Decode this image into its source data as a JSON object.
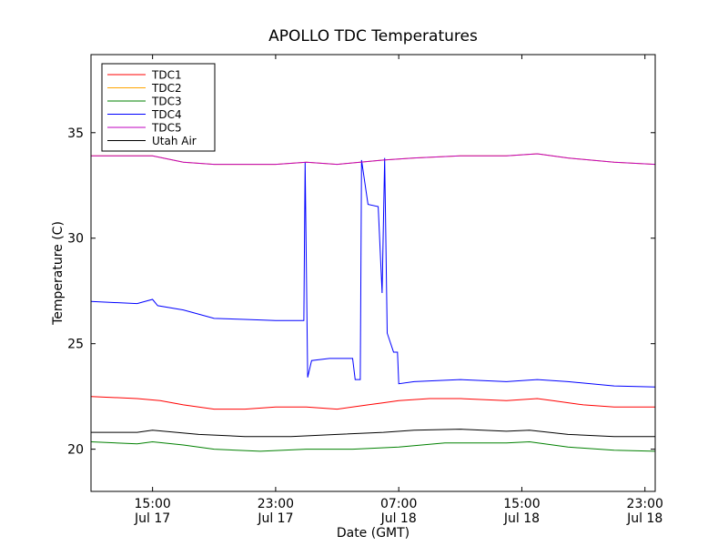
{
  "chart_data": {
    "type": "line",
    "title": "APOLLO TDC Temperatures",
    "xlabel": "Date (GMT)",
    "ylabel": "Temperature (C)",
    "xlim": [
      "2012-07-17T11:00",
      "2012-07-18T23:40"
    ],
    "ylim": [
      18,
      38.7
    ],
    "grid": false,
    "legend_position": "top-left",
    "x_ticks": [
      {
        "x": "2012-07-17T15:00",
        "time": "15:00",
        "date": "Jul 17"
      },
      {
        "x": "2012-07-17T23:00",
        "time": "23:00",
        "date": "Jul 17"
      },
      {
        "x": "2012-07-18T07:00",
        "time": "07:00",
        "date": "Jul 18"
      },
      {
        "x": "2012-07-18T15:00",
        "time": "15:00",
        "date": "Jul 18"
      },
      {
        "x": "2012-07-18T23:00",
        "time": "23:00",
        "date": "Jul 18"
      }
    ],
    "y_ticks": [
      20,
      25,
      30,
      35
    ],
    "series": [
      {
        "name": "TDC1",
        "color": "#ff0000",
        "points": [
          [
            "2012-07-17T11:00",
            22.5
          ],
          [
            "2012-07-17T14:00",
            22.4
          ],
          [
            "2012-07-17T15:30",
            22.3
          ],
          [
            "2012-07-17T17:00",
            22.1
          ],
          [
            "2012-07-17T19:00",
            21.9
          ],
          [
            "2012-07-17T21:00",
            21.9
          ],
          [
            "2012-07-17T23:00",
            22.0
          ],
          [
            "2012-07-18T01:00",
            22.0
          ],
          [
            "2012-07-18T03:00",
            21.9
          ],
          [
            "2012-07-18T05:00",
            22.1
          ],
          [
            "2012-07-18T06:00",
            22.2
          ],
          [
            "2012-07-18T07:00",
            22.3
          ],
          [
            "2012-07-18T09:00",
            22.4
          ],
          [
            "2012-07-18T11:00",
            22.4
          ],
          [
            "2012-07-18T14:00",
            22.3
          ],
          [
            "2012-07-18T16:00",
            22.4
          ],
          [
            "2012-07-18T17:00",
            22.3
          ],
          [
            "2012-07-18T19:00",
            22.1
          ],
          [
            "2012-07-18T21:00",
            22.0
          ],
          [
            "2012-07-18T23:40",
            22.0
          ]
        ]
      },
      {
        "name": "TDC2",
        "color": "#ffa500",
        "points": [
          [
            "2012-07-17T11:00",
            33.9
          ],
          [
            "2012-07-17T14:00",
            33.9
          ],
          [
            "2012-07-17T15:00",
            33.9
          ],
          [
            "2012-07-17T17:00",
            33.6
          ],
          [
            "2012-07-17T19:00",
            33.5
          ],
          [
            "2012-07-17T23:00",
            33.5
          ],
          [
            "2012-07-18T01:00",
            33.6
          ],
          [
            "2012-07-18T03:00",
            33.5
          ],
          [
            "2012-07-18T06:00",
            33.7
          ],
          [
            "2012-07-18T08:00",
            33.8
          ],
          [
            "2012-07-18T11:00",
            33.9
          ],
          [
            "2012-07-18T14:00",
            33.9
          ],
          [
            "2012-07-18T16:00",
            34.0
          ],
          [
            "2012-07-18T18:00",
            33.8
          ],
          [
            "2012-07-18T21:00",
            33.6
          ],
          [
            "2012-07-18T23:40",
            33.5
          ]
        ]
      },
      {
        "name": "TDC3",
        "color": "#008000",
        "points": [
          [
            "2012-07-17T11:00",
            20.35
          ],
          [
            "2012-07-17T14:00",
            20.25
          ],
          [
            "2012-07-17T15:00",
            20.35
          ],
          [
            "2012-07-17T17:00",
            20.2
          ],
          [
            "2012-07-17T19:00",
            20.0
          ],
          [
            "2012-07-17T22:00",
            19.9
          ],
          [
            "2012-07-18T01:00",
            20.0
          ],
          [
            "2012-07-18T04:00",
            20.0
          ],
          [
            "2012-07-18T07:00",
            20.1
          ],
          [
            "2012-07-18T10:00",
            20.3
          ],
          [
            "2012-07-18T14:00",
            20.3
          ],
          [
            "2012-07-18T15:30",
            20.35
          ],
          [
            "2012-07-18T18:00",
            20.1
          ],
          [
            "2012-07-18T21:00",
            19.95
          ],
          [
            "2012-07-18T23:40",
            19.9
          ]
        ]
      },
      {
        "name": "TDC4",
        "color": "#0000ff",
        "points": [
          [
            "2012-07-17T11:00",
            27.0
          ],
          [
            "2012-07-17T14:00",
            26.9
          ],
          [
            "2012-07-17T15:00",
            27.1
          ],
          [
            "2012-07-17T15:20",
            26.8
          ],
          [
            "2012-07-17T17:00",
            26.6
          ],
          [
            "2012-07-17T19:00",
            26.2
          ],
          [
            "2012-07-17T21:00",
            26.15
          ],
          [
            "2012-07-17T23:00",
            26.1
          ],
          [
            "2012-07-18T00:50",
            26.1
          ],
          [
            "2012-07-18T00:55",
            33.6
          ],
          [
            "2012-07-18T01:05",
            23.4
          ],
          [
            "2012-07-18T01:20",
            24.2
          ],
          [
            "2012-07-18T02:30",
            24.3
          ],
          [
            "2012-07-18T04:00",
            24.3
          ],
          [
            "2012-07-18T04:10",
            23.3
          ],
          [
            "2012-07-18T04:30",
            23.3
          ],
          [
            "2012-07-18T04:35",
            33.7
          ],
          [
            "2012-07-18T05:00",
            31.6
          ],
          [
            "2012-07-18T05:40",
            31.5
          ],
          [
            "2012-07-18T05:55",
            27.4
          ],
          [
            "2012-07-18T06:05",
            33.8
          ],
          [
            "2012-07-18T06:15",
            25.5
          ],
          [
            "2012-07-18T06:40",
            24.6
          ],
          [
            "2012-07-18T06:55",
            24.6
          ],
          [
            "2012-07-18T07:00",
            23.1
          ],
          [
            "2012-07-18T08:00",
            23.2
          ],
          [
            "2012-07-18T11:00",
            23.3
          ],
          [
            "2012-07-18T14:00",
            23.2
          ],
          [
            "2012-07-18T16:00",
            23.3
          ],
          [
            "2012-07-18T18:00",
            23.2
          ],
          [
            "2012-07-18T21:00",
            23.0
          ],
          [
            "2012-07-18T23:40",
            22.95
          ]
        ]
      },
      {
        "name": "TDC5",
        "color": "#bf00bf",
        "points": [
          [
            "2012-07-17T11:00",
            33.9
          ],
          [
            "2012-07-17T14:00",
            33.9
          ],
          [
            "2012-07-17T15:00",
            33.9
          ],
          [
            "2012-07-17T17:00",
            33.6
          ],
          [
            "2012-07-17T19:00",
            33.5
          ],
          [
            "2012-07-17T23:00",
            33.5
          ],
          [
            "2012-07-18T01:00",
            33.6
          ],
          [
            "2012-07-18T03:00",
            33.5
          ],
          [
            "2012-07-18T06:00",
            33.7
          ],
          [
            "2012-07-18T08:00",
            33.8
          ],
          [
            "2012-07-18T11:00",
            33.9
          ],
          [
            "2012-07-18T14:00",
            33.9
          ],
          [
            "2012-07-18T16:00",
            34.0
          ],
          [
            "2012-07-18T18:00",
            33.8
          ],
          [
            "2012-07-18T21:00",
            33.6
          ],
          [
            "2012-07-18T23:40",
            33.5
          ]
        ]
      },
      {
        "name": "Utah Air",
        "color": "#000000",
        "points": [
          [
            "2012-07-17T11:00",
            20.8
          ],
          [
            "2012-07-17T14:00",
            20.8
          ],
          [
            "2012-07-17T15:00",
            20.9
          ],
          [
            "2012-07-17T18:00",
            20.7
          ],
          [
            "2012-07-17T21:00",
            20.6
          ],
          [
            "2012-07-18T00:00",
            20.6
          ],
          [
            "2012-07-18T03:00",
            20.7
          ],
          [
            "2012-07-18T06:00",
            20.8
          ],
          [
            "2012-07-18T08:00",
            20.9
          ],
          [
            "2012-07-18T11:00",
            20.95
          ],
          [
            "2012-07-18T14:00",
            20.85
          ],
          [
            "2012-07-18T15:30",
            20.9
          ],
          [
            "2012-07-18T18:00",
            20.7
          ],
          [
            "2012-07-18T21:00",
            20.6
          ],
          [
            "2012-07-18T23:40",
            20.6
          ]
        ]
      }
    ]
  }
}
